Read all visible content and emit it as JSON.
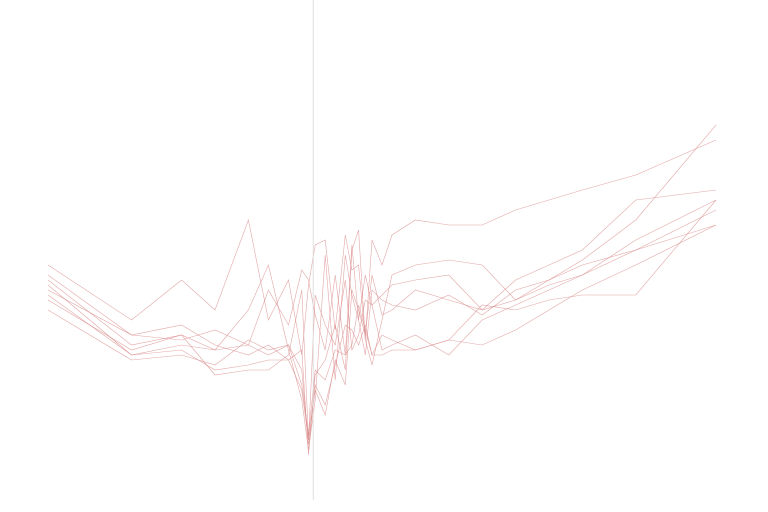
{
  "chart_data": {
    "type": "line",
    "title": "",
    "xlabel": "",
    "ylabel": "",
    "xlim": [
      0,
      100
    ],
    "ylim": [
      0,
      100
    ],
    "grid": false,
    "legend": "none",
    "cursor_x": 39.7,
    "colors": {
      "series": "#d98a8a",
      "cursor": "#d8d8d8",
      "background": "#ffffff"
    },
    "x": [
      0,
      12.5,
      20,
      25,
      30,
      33,
      36,
      38,
      39,
      40,
      41.5,
      43,
      44.5,
      45.5,
      46.5,
      47.5,
      48.5,
      50,
      51.5,
      55,
      60,
      65,
      70,
      75,
      80,
      88,
      100
    ],
    "series": [
      {
        "values": [
          47,
          36,
          44,
          38,
          56,
          36,
          44,
          29,
          43,
          51,
          52,
          34,
          53,
          46,
          47,
          32,
          52,
          47,
          53,
          56,
          55,
          55,
          58,
          60,
          62,
          65,
          72
        ]
      },
      {
        "values": [
          45,
          33,
          35,
          31,
          29,
          31,
          28,
          30,
          9,
          25,
          28,
          35,
          26,
          50,
          54,
          32,
          27,
          36,
          45,
          47,
          48,
          47,
          40,
          44,
          48,
          56,
          75
        ]
      },
      {
        "values": [
          44,
          31,
          33,
          30,
          38,
          47,
          30,
          20,
          10,
          20,
          49,
          24,
          49,
          41,
          36,
          45,
          39,
          41,
          43,
          44,
          45,
          38,
          44,
          47,
          50,
          60,
          62
        ]
      },
      {
        "values": [
          43,
          29,
          31,
          30,
          31,
          29,
          31,
          26,
          11,
          22,
          17,
          28,
          23,
          42,
          38,
          33,
          45,
          37,
          38,
          42,
          40,
          38,
          40,
          43,
          45,
          52,
          60
        ]
      },
      {
        "values": [
          42,
          33,
          32,
          34,
          31,
          42,
          35,
          46,
          44,
          37,
          30,
          45,
          29,
          51,
          36,
          29,
          42,
          40,
          39,
          38,
          41,
          37,
          42,
          44,
          47,
          50,
          55
        ]
      },
      {
        "values": [
          41,
          29,
          30,
          26,
          27,
          28,
          28,
          22,
          12,
          23,
          19,
          27,
          35,
          34,
          31,
          35,
          29,
          33,
          32,
          30,
          32,
          31,
          34,
          38,
          42,
          47,
          55
        ]
      },
      {
        "values": [
          40,
          30,
          33,
          25,
          26,
          26,
          29,
          42,
          12,
          41,
          35,
          31,
          44,
          30,
          33,
          40,
          39,
          30,
          31,
          33,
          29,
          36,
          39,
          42,
          45,
          50,
          58
        ]
      },
      {
        "values": [
          38,
          28,
          29,
          27,
          32,
          30,
          31,
          23,
          13,
          26,
          24,
          30,
          29,
          31,
          39,
          34,
          29,
          29,
          30,
          30,
          32,
          39,
          38,
          40,
          41,
          41,
          60
        ]
      }
    ]
  }
}
